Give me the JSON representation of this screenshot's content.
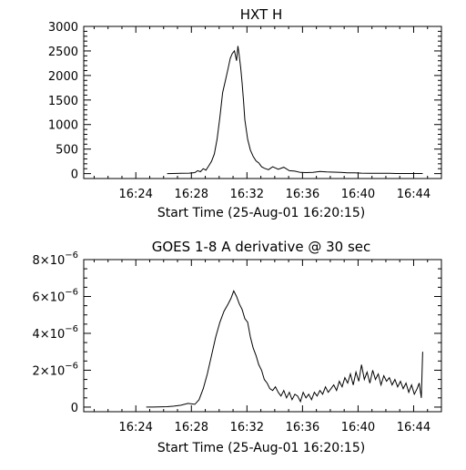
{
  "chart_data": [
    {
      "type": "line",
      "title": "HXT H",
      "xlabel": "Start Time (25-Aug-01 16:20:15)",
      "ylabel": "",
      "x_unit": "minutes after 16:20:15",
      "xlim": [
        0,
        25.75
      ],
      "ylim": [
        -100,
        3000
      ],
      "x_ticks": [
        3.75,
        7.75,
        11.75,
        15.75,
        19.75,
        23.75
      ],
      "x_tick_labels": [
        "16:24",
        "16:28",
        "16:32",
        "16:36",
        "16:40",
        "16:44"
      ],
      "y_ticks": [
        0,
        500,
        1000,
        1500,
        2000,
        2500,
        3000
      ],
      "y_tick_labels": [
        "0",
        "500",
        "1000",
        "1500",
        "2000",
        "2500",
        "3000"
      ],
      "grid": false,
      "line_color": "#000000",
      "series": [
        {
          "x": [
            6.0,
            6.4,
            7.0,
            7.6,
            8.0,
            8.2,
            8.4,
            8.6,
            8.8,
            9.0,
            9.2,
            9.4,
            9.6,
            9.8,
            10.0,
            10.2,
            10.4,
            10.55,
            10.7,
            10.85,
            11.0,
            11.1,
            11.2,
            11.3,
            11.4,
            11.5,
            11.6,
            11.8,
            12.0,
            12.2,
            12.4,
            12.6,
            12.8,
            13.0,
            13.3,
            13.6,
            14.0,
            14.4,
            14.8,
            15.2,
            15.6,
            16.0,
            16.5,
            17.0,
            17.5,
            18.0,
            18.5,
            19.0,
            19.5,
            20.0,
            20.5,
            21.0,
            21.5,
            22.0,
            22.5,
            23.0,
            23.5,
            24.0,
            24.4
          ],
          "y": [
            0,
            3,
            6,
            10,
            20,
            60,
            40,
            100,
            70,
            160,
            250,
            400,
            700,
            1150,
            1650,
            1900,
            2150,
            2350,
            2450,
            2500,
            2300,
            2600,
            2400,
            2150,
            1850,
            1500,
            1100,
            700,
            480,
            350,
            260,
            220,
            140,
            110,
            80,
            140,
            90,
            130,
            60,
            50,
            25,
            20,
            25,
            45,
            35,
            30,
            25,
            15,
            15,
            10,
            8,
            8,
            5,
            5,
            3,
            3,
            2,
            2,
            2
          ]
        }
      ]
    },
    {
      "type": "line",
      "title": "GOES 1-8 A derivative @ 30 sec",
      "xlabel": "Start Time (25-Aug-01 16:20:15)",
      "ylabel": "",
      "x_unit": "minutes after 16:20:15",
      "xlim": [
        0,
        25.75
      ],
      "ylim": [
        -2.5e-07,
        8e-06
      ],
      "x_ticks": [
        3.75,
        7.75,
        11.75,
        15.75,
        19.75,
        23.75
      ],
      "x_tick_labels": [
        "16:24",
        "16:28",
        "16:32",
        "16:36",
        "16:40",
        "16:44"
      ],
      "y_ticks": [
        0,
        2e-06,
        4e-06,
        6e-06,
        8e-06
      ],
      "y_tick_labels": [
        {
          "base": "0",
          "exp": ""
        },
        {
          "base": "2×10",
          "exp": "−6"
        },
        {
          "base": "4×10",
          "exp": "−6"
        },
        {
          "base": "6×10",
          "exp": "−6"
        },
        {
          "base": "8×10",
          "exp": "−6"
        }
      ],
      "grid": false,
      "line_color": "#000000",
      "series": [
        {
          "x": [
            4.5,
            5.0,
            6.0,
            6.5,
            7.0,
            7.5,
            8.0,
            8.3,
            8.6,
            8.9,
            9.2,
            9.5,
            9.8,
            10.1,
            10.4,
            10.6,
            10.8,
            11.0,
            11.2,
            11.4,
            11.6,
            11.8,
            12.0,
            12.2,
            12.4,
            12.6,
            12.8,
            13.0,
            13.2,
            13.4,
            13.6,
            13.8,
            14.0,
            14.2,
            14.4,
            14.6,
            14.8,
            15.0,
            15.2,
            15.4,
            15.6,
            15.8,
            16.0,
            16.2,
            16.4,
            16.6,
            16.8,
            17.0,
            17.2,
            17.4,
            17.6,
            17.8,
            18.0,
            18.2,
            18.4,
            18.6,
            18.8,
            19.0,
            19.2,
            19.4,
            19.6,
            19.8,
            20.0,
            20.2,
            20.4,
            20.6,
            20.8,
            21.0,
            21.2,
            21.4,
            21.6,
            21.8,
            22.0,
            22.2,
            22.4,
            22.6,
            22.8,
            23.0,
            23.2,
            23.4,
            23.6,
            23.8,
            24.0,
            24.15,
            24.3,
            24.4
          ],
          "y": [
            0,
            0,
            2e-08,
            5e-08,
            1e-07,
            2e-07,
            1.5e-07,
            4e-07,
            1e-06,
            1.8e-06,
            2.8e-06,
            3.8e-06,
            4.6e-06,
            5.2e-06,
            5.6e-06,
            5.9e-06,
            6.3e-06,
            6e-06,
            5.6e-06,
            5.3e-06,
            4.8e-06,
            4.6e-06,
            3.8e-06,
            3.2e-06,
            2.8e-06,
            2.3e-06,
            2e-06,
            1.5e-06,
            1.3e-06,
            1e-06,
            9e-07,
            1.1e-06,
            8e-07,
            6e-07,
            9e-07,
            5e-07,
            8e-07,
            4e-07,
            7e-07,
            6e-07,
            3e-07,
            8e-07,
            5e-07,
            7e-07,
            4e-07,
            8e-07,
            6e-07,
            9e-07,
            7e-07,
            1.1e-06,
            8e-07,
            1e-06,
            1.2e-06,
            9e-07,
            1.4e-06,
            1.1e-06,
            1.6e-06,
            1.3e-06,
            1.8e-06,
            1.2e-06,
            1.9e-06,
            1.4e-06,
            2.3e-06,
            1.5e-06,
            1.9e-06,
            1.3e-06,
            2e-06,
            1.5e-06,
            1.8e-06,
            1.2e-06,
            1.7e-06,
            1.4e-06,
            1.6e-06,
            1.2e-06,
            1.5e-06,
            1.1e-06,
            1.4e-06,
            1e-06,
            1.3e-06,
            8e-07,
            1.2e-06,
            7e-07,
            1e-06,
            1.3e-06,
            5e-07,
            3e-06
          ]
        }
      ]
    }
  ]
}
